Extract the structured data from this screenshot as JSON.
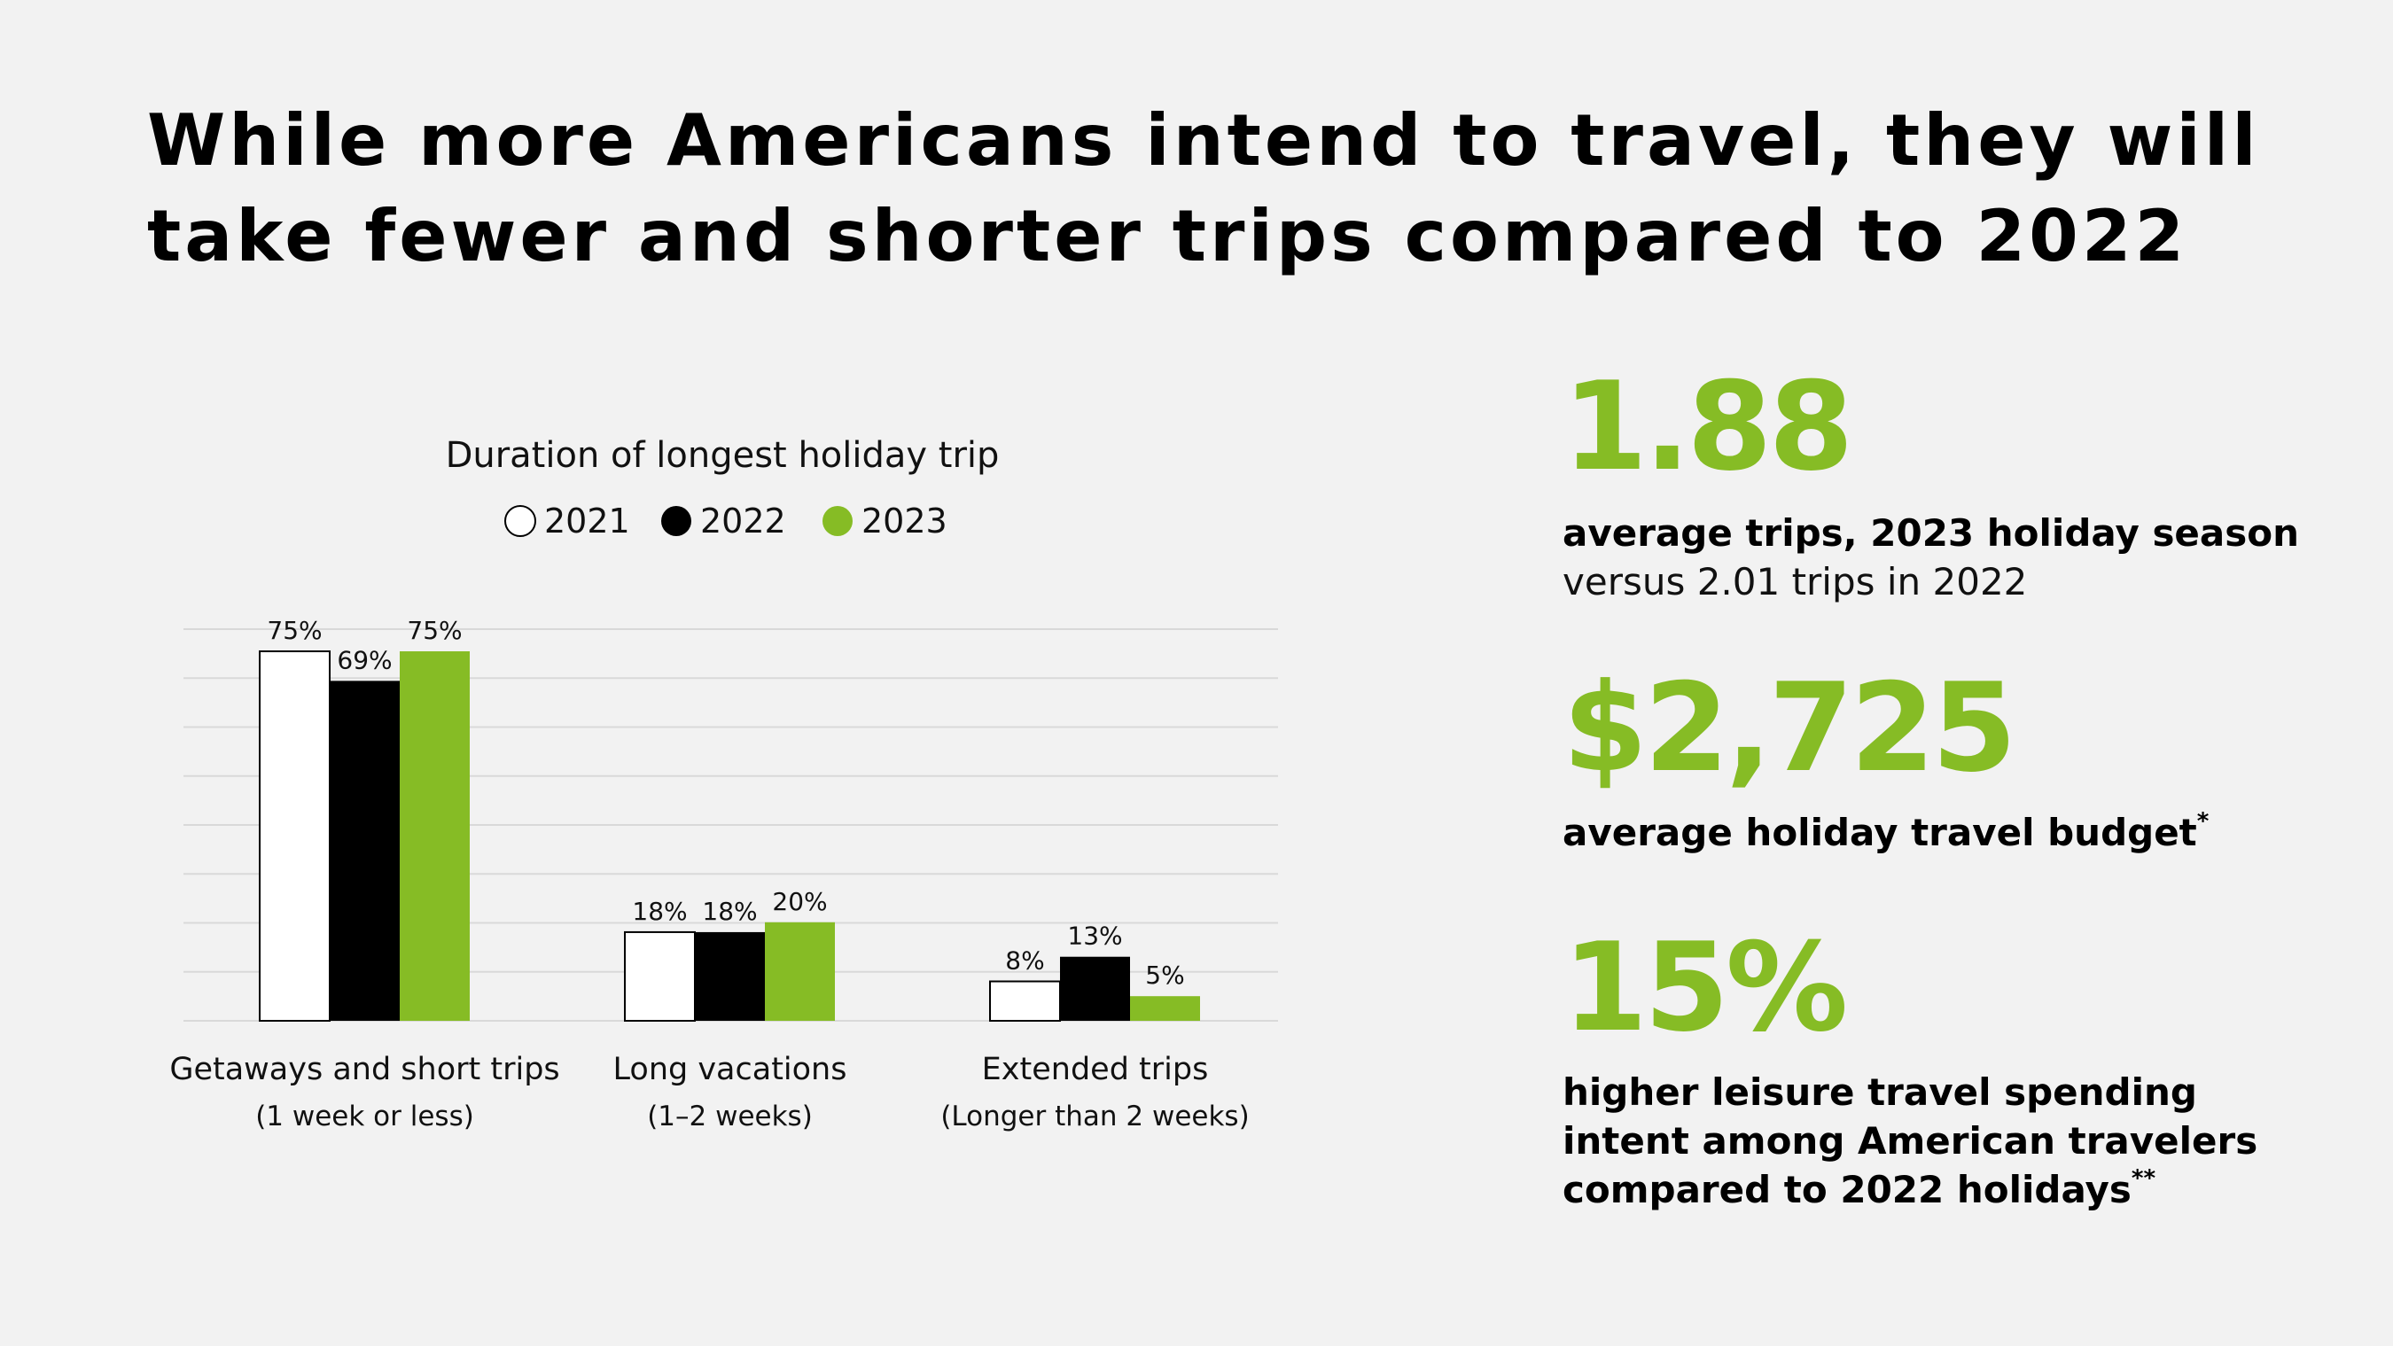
{
  "headline": {
    "line1": "While more Americans intend to travel, they will",
    "line2": "take fewer and shorter trips compared to 2022"
  },
  "chart_data": {
    "type": "bar",
    "title": "Duration of longest holiday trip",
    "categories": [
      "Getaways and short trips",
      "Long vacations",
      "Extended trips"
    ],
    "category_sublabels": [
      "(1 week or less)",
      "(1–2 weeks)",
      "(Longer than 2 weeks)"
    ],
    "series": [
      {
        "name": "2021",
        "values": [
          75,
          18,
          8
        ],
        "labels": [
          "75%",
          "18%",
          "8%"
        ],
        "color": "#ffffff"
      },
      {
        "name": "2022",
        "values": [
          69,
          18,
          13
        ],
        "labels": [
          "69%",
          "18%",
          "13%"
        ],
        "color": "#000000"
      },
      {
        "name": "2023",
        "values": [
          75,
          20,
          5
        ],
        "labels": [
          "75%",
          "20%",
          "5%"
        ],
        "color": "#86bc25"
      }
    ],
    "ylim": [
      0,
      80
    ],
    "grid": true,
    "legend": "top-center"
  },
  "stats": [
    {
      "value": "1.88",
      "line1": "average trips, 2023 holiday season",
      "line2": "versus 2.01 trips in 2022"
    },
    {
      "value": "$2,725",
      "line1": "average holiday travel budget",
      "mark": "*"
    },
    {
      "value": "15%",
      "lines": [
        "higher leisure travel spending",
        "intent among American travelers",
        "compared to 2022 holidays"
      ],
      "mark": "**"
    }
  ],
  "colors": {
    "accent": "#86bc25",
    "background": "#f2f2f2",
    "gridline": "#d9d9d9"
  }
}
